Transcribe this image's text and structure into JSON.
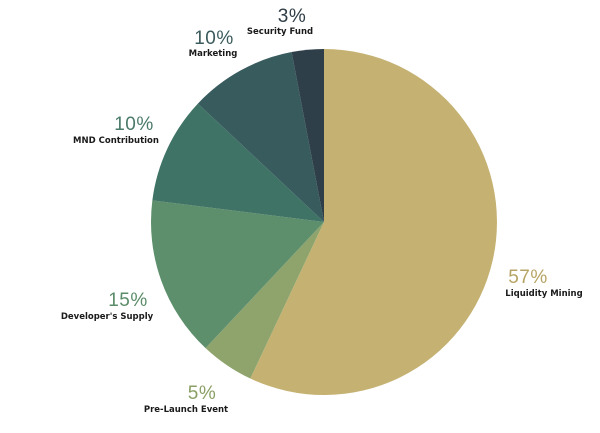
{
  "chart_data": {
    "type": "pie",
    "title": "",
    "start_angle_deg": 0,
    "direction": "clockwise",
    "slices": [
      {
        "label": "Liquidity Mining",
        "value": 57,
        "pct_text": "57%",
        "color": "#c5b273",
        "pct_color": "#b6a464"
      },
      {
        "label": "Pre-Launch Event",
        "value": 5,
        "pct_text": "5%",
        "color": "#8ea46c",
        "pct_color": "#8a9f66"
      },
      {
        "label": "Developer's Supply",
        "value": 15,
        "pct_text": "15%",
        "color": "#5e8f6c",
        "pct_color": "#5b8c69"
      },
      {
        "label": "MND Contribution",
        "value": 10,
        "pct_text": "10%",
        "color": "#3f7365",
        "pct_color": "#4a7a6a"
      },
      {
        "label": "Marketing",
        "value": 10,
        "pct_text": "10%",
        "color": "#385b5e",
        "pct_color": "#3b5a5c"
      },
      {
        "label": "Security Fund",
        "value": 3,
        "pct_text": "3%",
        "color": "#2e3f4a",
        "pct_color": "#2f3d47"
      }
    ]
  }
}
